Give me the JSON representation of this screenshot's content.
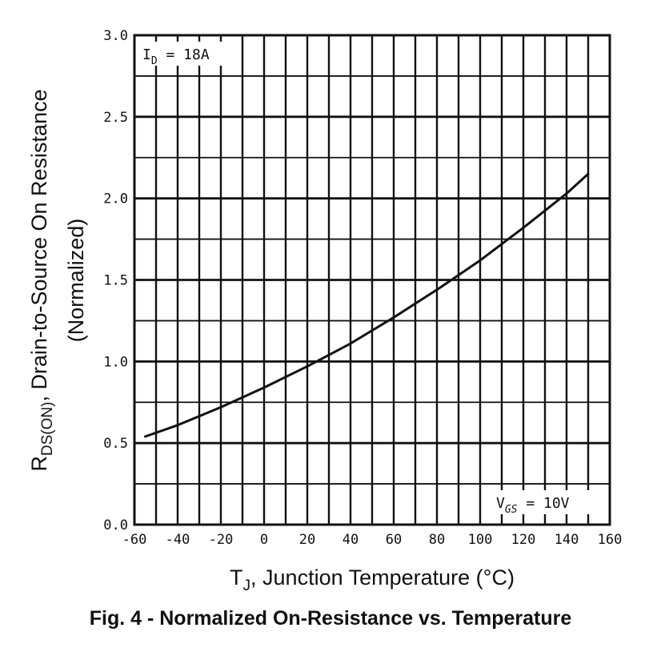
{
  "chart_data": {
    "type": "line",
    "caption": "Fig. 4 - Normalized On-Resistance vs. Temperature",
    "xlabel": {
      "main": "T",
      "sub": "J",
      "rest": ", Junction Temperature (°C)"
    },
    "ylabel": {
      "main": "R",
      "sub": "DS(ON)",
      "rest": ", Drain-to-Source On Resistance",
      "line2": "(Normalized)"
    },
    "xlim": [
      -60,
      160
    ],
    "ylim": [
      0.0,
      3.0
    ],
    "x_ticks": [
      "-60",
      "-40",
      "-20",
      "0",
      "20",
      "40",
      "60",
      "80",
      "100",
      "120",
      "140",
      "160"
    ],
    "y_ticks": [
      "0.0",
      "0.5",
      "1.0",
      "1.5",
      "2.0",
      "2.5",
      "3.0"
    ],
    "grid": true,
    "annotations": {
      "id": {
        "main": "I",
        "sub": "D",
        "rest": " = 18A"
      },
      "vgs": {
        "main": "V",
        "sub": "GS",
        "rest": " = 10V"
      }
    },
    "series": [
      {
        "x": [
          -55,
          -40,
          -20,
          0,
          20,
          40,
          60,
          80,
          100,
          120,
          140,
          150
        ],
        "y": [
          0.54,
          0.61,
          0.72,
          0.84,
          0.97,
          1.11,
          1.27,
          1.44,
          1.62,
          1.82,
          2.03,
          2.15
        ]
      }
    ]
  }
}
